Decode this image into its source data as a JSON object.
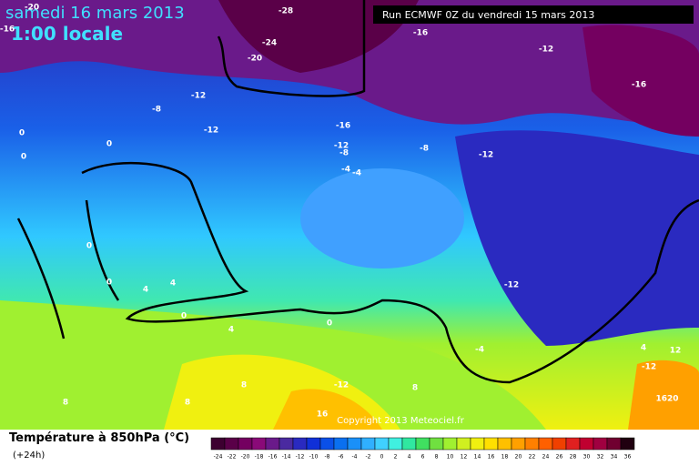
{
  "header": {
    "date": "samedi 16 mars 2013",
    "time": "1:00 locale",
    "run": "Run ECMWF 0Z du vendredi 15 mars 2013"
  },
  "footer": {
    "title": "Température à 850hPa (°C)",
    "lead": "(+24h)",
    "copyright": "Copyright 2013 Meteociel.fr"
  },
  "colorbar": {
    "ticks": [
      -24,
      -22,
      -20,
      -18,
      -16,
      -14,
      -12,
      -10,
      -8,
      -6,
      -4,
      -2,
      0,
      2,
      4,
      6,
      8,
      10,
      12,
      14,
      16,
      18,
      20,
      22,
      24,
      26,
      28,
      30,
      32,
      34,
      36
    ],
    "colors": [
      "#3d0030",
      "#5a0048",
      "#740060",
      "#8a0a78",
      "#6a1a8a",
      "#4a2aa0",
      "#2a2ac0",
      "#1030d8",
      "#0a50e8",
      "#0a70f0",
      "#1a90f8",
      "#30b0ff",
      "#40d0ff",
      "#40f0e0",
      "#30e8a0",
      "#40e060",
      "#70e040",
      "#a0f030",
      "#d0f020",
      "#f0f010",
      "#ffe000",
      "#ffc000",
      "#ffa000",
      "#ff8000",
      "#ff6000",
      "#f04000",
      "#e02020",
      "#c00030",
      "#a00040",
      "#700030",
      "#200010"
    ]
  },
  "map": {
    "labels": [
      "-20",
      "-28",
      "-24",
      "-20",
      "-16",
      "-12",
      "-16",
      "-12",
      "-8",
      "-12",
      "-16",
      "-12",
      "-8",
      "-8",
      "-12",
      "-4",
      "-4",
      "-12",
      "0",
      "0",
      "0",
      "4",
      "4",
      "0",
      "4",
      "0",
      "-4",
      "-12",
      "8",
      "8",
      "8",
      "8",
      "16",
      "4",
      "12",
      "-12",
      "1620",
      "-16",
      "0",
      "0"
    ]
  }
}
